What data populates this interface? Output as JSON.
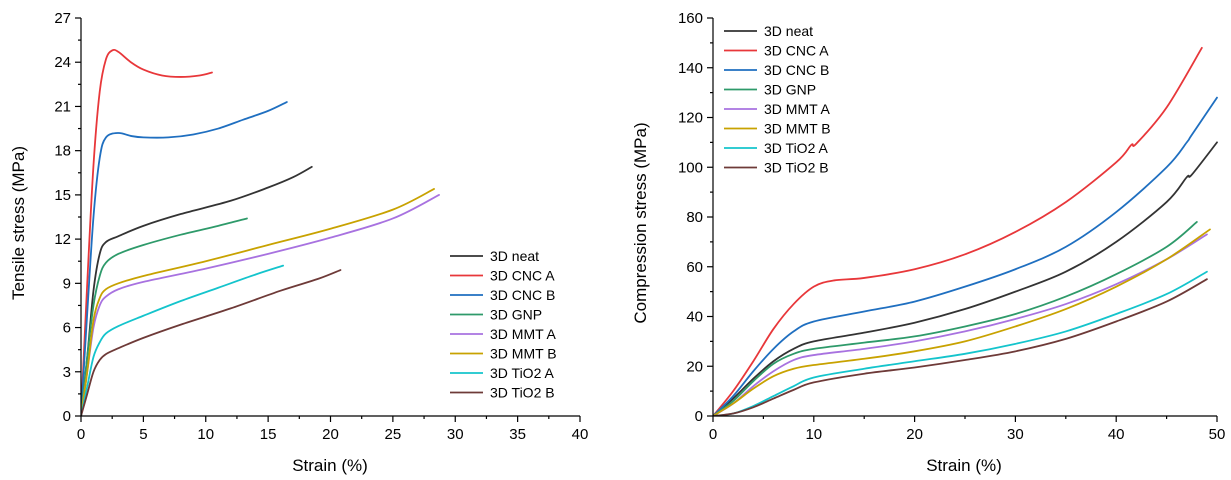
{
  "chart_data": [
    {
      "type": "line",
      "xlabel": "Strain (%)",
      "ylabel": "Tensile stress (MPa)",
      "xlim": [
        0,
        40
      ],
      "ylim": [
        0,
        27
      ],
      "xticks": [
        0,
        5,
        10,
        15,
        20,
        25,
        30,
        35,
        40
      ],
      "yticks": [
        0,
        3,
        6,
        9,
        12,
        15,
        18,
        21,
        24,
        27
      ],
      "legend_position": "bottom-right",
      "series": [
        {
          "name": "3D neat",
          "color": "#333333",
          "points": [
            [
              0,
              0
            ],
            [
              0.5,
              4
            ],
            [
              1,
              8.5
            ],
            [
              1.5,
              11
            ],
            [
              2,
              11.8
            ],
            [
              3,
              12.2
            ],
            [
              5,
              12.9
            ],
            [
              8,
              13.7
            ],
            [
              12,
              14.6
            ],
            [
              15,
              15.5
            ],
            [
              17,
              16.2
            ],
            [
              18.5,
              16.9
            ]
          ]
        },
        {
          "name": "3D CNC A",
          "color": "#e8373a",
          "points": [
            [
              0,
              0
            ],
            [
              0.5,
              9
            ],
            [
              1,
              17
            ],
            [
              1.5,
              22
            ],
            [
              2,
              24.2
            ],
            [
              2.5,
              24.8
            ],
            [
              3,
              24.7
            ],
            [
              4,
              24
            ],
            [
              5,
              23.5
            ],
            [
              6.5,
              23.1
            ],
            [
              8,
              23
            ],
            [
              9.5,
              23.1
            ],
            [
              10.5,
              23.3
            ]
          ]
        },
        {
          "name": "3D CNC B",
          "color": "#1f6fc0",
          "points": [
            [
              0,
              0
            ],
            [
              0.5,
              7
            ],
            [
              1,
              13.5
            ],
            [
              1.5,
              17.5
            ],
            [
              2,
              18.9
            ],
            [
              3,
              19.2
            ],
            [
              4,
              19
            ],
            [
              5,
              18.9
            ],
            [
              7,
              18.9
            ],
            [
              9,
              19.1
            ],
            [
              11,
              19.5
            ],
            [
              13,
              20.1
            ],
            [
              15,
              20.7
            ],
            [
              16.5,
              21.3
            ]
          ]
        },
        {
          "name": "3D GNP",
          "color": "#2e9a6a",
          "points": [
            [
              0,
              0
            ],
            [
              0.5,
              4
            ],
            [
              1,
              7.5
            ],
            [
              1.5,
              9.5
            ],
            [
              2,
              10.4
            ],
            [
              3,
              11
            ],
            [
              5,
              11.6
            ],
            [
              8,
              12.3
            ],
            [
              11,
              12.9
            ],
            [
              13.3,
              13.4
            ]
          ]
        },
        {
          "name": "3D MMT A",
          "color": "#a872e0",
          "points": [
            [
              0,
              0
            ],
            [
              0.5,
              3
            ],
            [
              1,
              6
            ],
            [
              1.5,
              7.5
            ],
            [
              2,
              8.1
            ],
            [
              3,
              8.6
            ],
            [
              5,
              9.1
            ],
            [
              10,
              10
            ],
            [
              15,
              11
            ],
            [
              20,
              12.1
            ],
            [
              25,
              13.4
            ],
            [
              28.7,
              15
            ]
          ]
        },
        {
          "name": "3D MMT B",
          "color": "#c8a200",
          "points": [
            [
              0,
              0
            ],
            [
              0.5,
              3
            ],
            [
              1,
              6.5
            ],
            [
              1.5,
              8
            ],
            [
              2,
              8.6
            ],
            [
              3,
              9
            ],
            [
              5,
              9.5
            ],
            [
              10,
              10.5
            ],
            [
              15,
              11.6
            ],
            [
              20,
              12.7
            ],
            [
              25,
              14
            ],
            [
              28.3,
              15.4
            ]
          ]
        },
        {
          "name": "3D TiO2 A",
          "color": "#14c4cc",
          "points": [
            [
              0,
              0
            ],
            [
              0.5,
              2
            ],
            [
              1,
              4
            ],
            [
              1.5,
              5
            ],
            [
              2,
              5.6
            ],
            [
              3,
              6.1
            ],
            [
              5,
              6.8
            ],
            [
              8,
              7.8
            ],
            [
              11,
              8.7
            ],
            [
              14,
              9.6
            ],
            [
              16.2,
              10.2
            ]
          ]
        },
        {
          "name": "3D TiO2 B",
          "color": "#6e3a38",
          "points": [
            [
              0,
              0
            ],
            [
              0.5,
              1.5
            ],
            [
              1,
              3
            ],
            [
              1.5,
              3.8
            ],
            [
              2,
              4.2
            ],
            [
              3,
              4.6
            ],
            [
              5,
              5.3
            ],
            [
              8,
              6.2
            ],
            [
              12,
              7.3
            ],
            [
              16,
              8.5
            ],
            [
              19,
              9.3
            ],
            [
              20.8,
              9.9
            ]
          ]
        }
      ]
    },
    {
      "type": "line",
      "xlabel": "Strain (%)",
      "ylabel": "Compression stress (MPa)",
      "xlim": [
        0,
        50
      ],
      "ylim": [
        0,
        160
      ],
      "xticks": [
        0,
        10,
        20,
        30,
        40,
        50
      ],
      "yticks": [
        0,
        20,
        40,
        60,
        80,
        100,
        120,
        140,
        160
      ],
      "legend_position": "top-left",
      "series": [
        {
          "name": "3D neat",
          "color": "#333333",
          "points": [
            [
              0,
              0
            ],
            [
              2,
              7
            ],
            [
              4,
              15
            ],
            [
              6,
              22
            ],
            [
              8,
              27
            ],
            [
              10,
              30
            ],
            [
              15,
              33.5
            ],
            [
              20,
              37.5
            ],
            [
              25,
              43
            ],
            [
              30,
              50
            ],
            [
              35,
              58
            ],
            [
              40,
              70
            ],
            [
              45,
              86
            ],
            [
              47,
              96
            ],
            [
              47.5,
              97
            ],
            [
              50,
              110
            ]
          ]
        },
        {
          "name": "3D CNC A",
          "color": "#e8373a",
          "points": [
            [
              0,
              0
            ],
            [
              2,
              10
            ],
            [
              4,
              22
            ],
            [
              6,
              35
            ],
            [
              8,
              45
            ],
            [
              10,
              52
            ],
            [
              12,
              54.5
            ],
            [
              15,
              55.5
            ],
            [
              20,
              59
            ],
            [
              25,
              65
            ],
            [
              30,
              74
            ],
            [
              35,
              86
            ],
            [
              40,
              102
            ],
            [
              41.5,
              109
            ],
            [
              42,
              109.5
            ],
            [
              45,
              124
            ],
            [
              48.5,
              148
            ]
          ]
        },
        {
          "name": "3D CNC B",
          "color": "#1f6fc0",
          "points": [
            [
              0,
              0
            ],
            [
              2,
              8
            ],
            [
              4,
              18
            ],
            [
              6,
              27
            ],
            [
              8,
              34
            ],
            [
              10,
              38
            ],
            [
              15,
              42
            ],
            [
              20,
              46
            ],
            [
              25,
              52
            ],
            [
              30,
              59
            ],
            [
              35,
              68
            ],
            [
              40,
              82
            ],
            [
              45,
              100
            ],
            [
              47,
              110
            ],
            [
              47.5,
              113
            ],
            [
              50,
              128
            ]
          ]
        },
        {
          "name": "3D GNP",
          "color": "#2e9a6a",
          "points": [
            [
              0,
              0
            ],
            [
              2,
              6
            ],
            [
              4,
              14
            ],
            [
              6,
              21
            ],
            [
              8,
              25
            ],
            [
              10,
              27
            ],
            [
              15,
              29.5
            ],
            [
              20,
              32
            ],
            [
              25,
              36
            ],
            [
              30,
              41
            ],
            [
              35,
              48
            ],
            [
              40,
              57
            ],
            [
              45,
              68
            ],
            [
              48,
              78
            ]
          ]
        },
        {
          "name": "3D MMT A",
          "color": "#a872e0",
          "points": [
            [
              0,
              0
            ],
            [
              2,
              5
            ],
            [
              4,
              12
            ],
            [
              6,
              18
            ],
            [
              8,
              22.5
            ],
            [
              10,
              24.5
            ],
            [
              15,
              27
            ],
            [
              20,
              30
            ],
            [
              25,
              34
            ],
            [
              30,
              39
            ],
            [
              35,
              45
            ],
            [
              40,
              53
            ],
            [
              45,
              63
            ],
            [
              49,
              73
            ]
          ]
        },
        {
          "name": "3D MMT B",
          "color": "#c8a200",
          "points": [
            [
              0,
              0
            ],
            [
              2,
              5
            ],
            [
              4,
              11
            ],
            [
              6,
              16
            ],
            [
              8,
              19
            ],
            [
              10,
              20.5
            ],
            [
              15,
              23
            ],
            [
              20,
              26
            ],
            [
              25,
              30
            ],
            [
              30,
              36
            ],
            [
              35,
              43
            ],
            [
              40,
              52
            ],
            [
              45,
              63
            ],
            [
              49.3,
              75
            ]
          ]
        },
        {
          "name": "3D TiO2 A",
          "color": "#14c4cc",
          "points": [
            [
              0,
              0
            ],
            [
              2,
              1
            ],
            [
              4,
              4
            ],
            [
              6,
              8
            ],
            [
              8,
              12
            ],
            [
              10,
              15.5
            ],
            [
              15,
              19
            ],
            [
              20,
              22
            ],
            [
              25,
              25
            ],
            [
              30,
              29
            ],
            [
              35,
              34
            ],
            [
              40,
              41
            ],
            [
              45,
              49
            ],
            [
              49,
              58
            ]
          ]
        },
        {
          "name": "3D TiO2 B",
          "color": "#6e3a38",
          "points": [
            [
              0,
              0
            ],
            [
              2,
              1
            ],
            [
              4,
              3.5
            ],
            [
              6,
              7
            ],
            [
              8,
              10.5
            ],
            [
              10,
              13.5
            ],
            [
              15,
              17
            ],
            [
              20,
              19.5
            ],
            [
              25,
              22.5
            ],
            [
              30,
              26
            ],
            [
              35,
              31
            ],
            [
              40,
              38
            ],
            [
              45,
              46
            ],
            [
              49,
              55
            ]
          ]
        }
      ]
    }
  ]
}
